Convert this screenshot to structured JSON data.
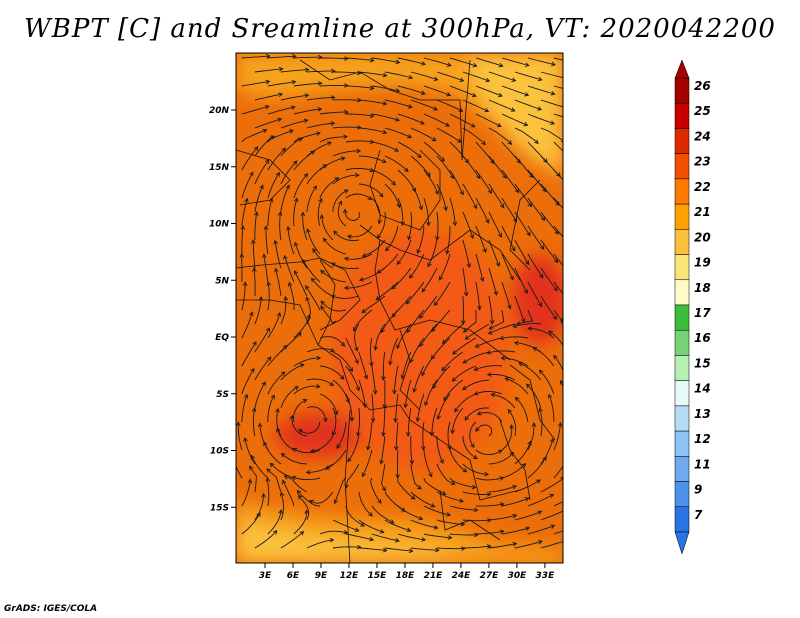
{
  "title": "WBPT [C] and Sreamline at 300hPa, VT: 2020042200",
  "credit": "GrADS: IGES/COLA",
  "map": {
    "variable": "WBPT [C]",
    "level": "300hPa",
    "valid_time": "2020042200",
    "lat_labels": [
      "20N",
      "15N",
      "10N",
      "5N",
      "EQ",
      "5S",
      "10S",
      "15S"
    ],
    "lat_values": [
      20,
      15,
      10,
      5,
      0,
      -5,
      -10,
      -15
    ],
    "lon_labels": [
      "3E",
      "6E",
      "9E",
      "12E",
      "15E",
      "18E",
      "21E",
      "24E",
      "27E",
      "30E",
      "33E"
    ],
    "lon_values": [
      3,
      6,
      9,
      12,
      15,
      18,
      21,
      24,
      27,
      30,
      33
    ]
  },
  "colorbar": {
    "labels": [
      "26",
      "25",
      "24",
      "23",
      "22",
      "21",
      "20",
      "19",
      "18",
      "17",
      "16",
      "15",
      "14",
      "13",
      "12",
      "11",
      "9",
      "7"
    ],
    "colors": [
      "#a50000",
      "#c80000",
      "#e12800",
      "#f05000",
      "#ff7800",
      "#ffa000",
      "#fac03c",
      "#fae678",
      "#fffac8",
      "#3cbe3c",
      "#78d278",
      "#b4f0b4",
      "#e6fafa",
      "#b4dcf5",
      "#8cc3f5",
      "#6eaaf0",
      "#4b91eb",
      "#2873e6"
    ]
  },
  "colors": {
    "field_base": "#ec6e0a",
    "field_warm": "#f25a14",
    "field_hot": "#e2321a",
    "field_cool": "#f7a21c",
    "field_cooler": "#fbc23c",
    "streamline": "#1a1a1a"
  }
}
